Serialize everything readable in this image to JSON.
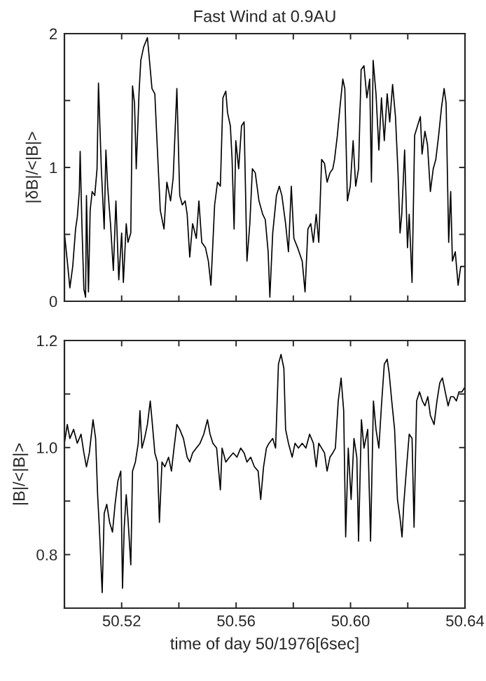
{
  "chart_data": [
    {
      "type": "line",
      "title": "Fast Wind at 0.9AU",
      "ylabel": "|δB|/<|B|>",
      "xlim": [
        50.5,
        50.64
      ],
      "xticks": [
        {
          "value": 50.52,
          "label": null
        },
        {
          "value": 50.54,
          "label": null
        },
        {
          "value": 50.56,
          "label": null
        },
        {
          "value": 50.58,
          "label": null
        },
        {
          "value": 50.6,
          "label": null
        },
        {
          "value": 50.62,
          "label": null
        },
        {
          "value": 50.64,
          "label": null
        }
      ],
      "ylim": [
        0,
        2
      ],
      "yticks": [
        0,
        {
          "value": 0.5,
          "label": null
        },
        1,
        {
          "value": 1.5,
          "label": null
        },
        2
      ],
      "tick_labels": "y",
      "grid": false,
      "legend": false,
      "marker": "none",
      "line_style": "solid",
      "series": [
        {
          "color": "#000000",
          "x": [
            50.5,
            50.501,
            50.5019,
            50.5029,
            50.5039,
            50.5045,
            50.5052,
            50.5055,
            50.5061,
            50.5068,
            50.5074,
            50.5077,
            50.5084,
            50.509,
            50.5097,
            50.5106,
            50.5114,
            50.5119,
            50.5129,
            50.5139,
            50.5145,
            50.5151,
            50.5161,
            50.5171,
            50.518,
            50.519,
            50.52,
            50.5206,
            50.5216,
            50.5222,
            50.5232,
            50.5238,
            50.5245,
            50.5251,
            50.5261,
            50.5267,
            50.5277,
            50.529,
            50.5296,
            50.5306,
            50.5316,
            50.5325,
            50.5335,
            50.5348,
            50.5358,
            50.5371,
            50.538,
            50.5393,
            50.5403,
            50.5412,
            50.5422,
            50.5429,
            50.5438,
            50.5448,
            50.5461,
            50.547,
            50.548,
            50.5493,
            50.5503,
            50.5512,
            50.5525,
            50.5535,
            50.5545,
            50.5554,
            50.5564,
            50.557,
            50.558,
            50.5586,
            50.5593,
            50.5599,
            50.5609,
            50.5619,
            50.5628,
            50.5638,
            50.5648,
            50.5657,
            50.5667,
            50.568,
            50.5693,
            50.5702,
            50.5712,
            50.5718,
            50.5728,
            50.5741,
            50.5751,
            50.576,
            50.5773,
            50.5783,
            50.5793,
            50.5802,
            50.5815,
            50.5831,
            50.5841,
            50.5851,
            50.5861,
            50.587,
            50.588,
            50.5889,
            50.5899,
            50.5909,
            50.5918,
            50.5928,
            50.5938,
            50.5944,
            50.5954,
            50.5963,
            50.5973,
            50.598,
            50.5989,
            50.5999,
            50.6009,
            50.6018,
            50.6028,
            50.6037,
            50.6047,
            50.6057,
            50.6067,
            50.6073,
            50.6079,
            50.6089,
            50.6099,
            50.6108,
            50.6118,
            50.6128,
            50.6137,
            50.6147,
            50.6157,
            50.6166,
            50.6173,
            50.6179,
            50.6189,
            50.6199,
            50.6205,
            50.6215,
            50.6224,
            50.6234,
            50.6244,
            50.625,
            50.626,
            50.6269,
            50.6279,
            50.6289,
            50.6298,
            50.6308,
            50.6318,
            50.6327,
            50.6334,
            50.6343,
            50.635,
            50.6356,
            50.6366,
            50.6376,
            50.6385,
            50.64
          ],
          "values": [
            0.51,
            0.3,
            0.1,
            0.26,
            0.54,
            0.63,
            0.82,
            1.12,
            0.58,
            0.09,
            0.03,
            0.79,
            0.07,
            0.68,
            0.82,
            0.79,
            0.99,
            1.63,
            0.99,
            0.54,
            1.13,
            0.86,
            0.58,
            0.23,
            0.75,
            0.16,
            0.51,
            0.14,
            0.58,
            0.44,
            0.51,
            1.61,
            1.48,
            0.99,
            1.57,
            1.8,
            1.9,
            1.97,
            1.83,
            1.59,
            1.55,
            1.13,
            0.68,
            0.54,
            0.89,
            0.75,
            0.92,
            1.59,
            0.79,
            0.72,
            0.75,
            0.65,
            0.33,
            0.58,
            0.47,
            0.75,
            0.44,
            0.4,
            0.3,
            0.12,
            0.72,
            0.89,
            0.86,
            1.52,
            1.57,
            1.41,
            1.31,
            1.06,
            0.54,
            1.2,
            0.99,
            1.31,
            1.34,
            0.3,
            0.58,
            0.99,
            0.96,
            0.75,
            0.65,
            0.61,
            0.37,
            0.03,
            0.51,
            0.79,
            0.86,
            0.79,
            0.58,
            0.37,
            0.86,
            0.47,
            0.4,
            0.3,
            0.07,
            0.54,
            0.58,
            0.44,
            0.65,
            0.44,
            1.06,
            1.03,
            0.89,
            0.96,
            0.99,
            1.06,
            1.24,
            1.45,
            1.66,
            1.59,
            0.75,
            0.86,
            1.2,
            0.86,
            0.99,
            1.73,
            1.76,
            1.52,
            1.66,
            0.89,
            1.8,
            1.55,
            1.13,
            1.52,
            1.2,
            1.55,
            1.34,
            1.62,
            1.38,
            0.96,
            0.51,
            0.65,
            1.13,
            0.4,
            0.65,
            0.14,
            1.24,
            1.31,
            1.38,
            1.1,
            1.27,
            1.17,
            0.82,
            0.99,
            1.06,
            1.24,
            1.45,
            1.59,
            1.48,
            0.44,
            0.82,
            0.3,
            0.37,
            0.12,
            0.26,
            0.26
          ]
        }
      ]
    },
    {
      "type": "line",
      "xlabel": "time of day 50/1976[6sec]",
      "ylabel": "|B|/<|B|>",
      "xlim": [
        50.5,
        50.64
      ],
      "xticks": [
        {
          "value": 50.52,
          "label": "50.52"
        },
        {
          "value": 50.54,
          "label": null
        },
        {
          "value": 50.56,
          "label": "50.56"
        },
        {
          "value": 50.58,
          "label": null
        },
        {
          "value": 50.6,
          "label": "50.60"
        },
        {
          "value": 50.62,
          "label": null
        },
        {
          "value": 50.64,
          "label": "50.64"
        }
      ],
      "ylim": [
        0.7,
        1.2
      ],
      "yticks": [
        {
          "value": 0.7,
          "label": null
        },
        {
          "value": 0.8,
          "label": "0.8"
        },
        {
          "value": 0.9,
          "label": null
        },
        {
          "value": 1.0,
          "label": "1.0"
        },
        {
          "value": 1.1,
          "label": null
        },
        {
          "value": 1.2,
          "label": "1.2"
        }
      ],
      "grid": false,
      "legend": false,
      "marker": "none",
      "line_style": "solid",
      "series": [
        {
          "color": "#000000",
          "x": [
            50.5,
            50.501,
            50.5019,
            50.5032,
            50.5045,
            50.5058,
            50.5068,
            50.5077,
            50.5087,
            50.51,
            50.5109,
            50.5116,
            50.5122,
            50.5132,
            50.5139,
            50.5148,
            50.5158,
            50.5168,
            50.5177,
            50.5187,
            50.5197,
            50.5203,
            50.5209,
            50.5216,
            50.5222,
            50.5232,
            50.5238,
            50.5248,
            50.5258,
            50.5264,
            50.5271,
            50.528,
            50.529,
            50.53,
            50.5306,
            50.5316,
            50.5325,
            50.5332,
            50.5341,
            50.5351,
            50.5364,
            50.5374,
            50.5383,
            50.5393,
            50.5403,
            50.5416,
            50.5429,
            50.5438,
            50.5448,
            50.5461,
            50.5474,
            50.5487,
            50.55,
            50.5509,
            50.5519,
            50.5532,
            50.5545,
            50.5551,
            50.5564,
            50.5577,
            50.559,
            50.5603,
            50.5616,
            50.5628,
            50.5638,
            50.5651,
            50.5664,
            50.5677,
            50.5686,
            50.5696,
            50.5706,
            50.5715,
            50.5728,
            50.5738,
            50.5748,
            50.5757,
            50.5767,
            50.5773,
            50.5783,
            50.5796,
            50.5806,
            50.5818,
            50.5831,
            50.5844,
            50.5857,
            50.587,
            50.588,
            50.5889,
            50.5899,
            50.5909,
            50.5918,
            50.5928,
            50.5938,
            50.5947,
            50.5957,
            50.5967,
            50.5976,
            50.5983,
            50.5992,
            50.6002,
            50.6012,
            50.6022,
            50.6028,
            50.6038,
            50.6047,
            50.606,
            50.607,
            50.608,
            50.6089,
            50.6099,
            50.6108,
            50.6118,
            50.6128,
            50.6135,
            50.6144,
            50.6154,
            50.6164,
            50.6173,
            50.618,
            50.6186,
            50.6196,
            50.6205,
            50.6215,
            50.6222,
            50.6231,
            50.6241,
            50.6251,
            50.626,
            50.627,
            50.6279,
            50.6292,
            50.6302,
            50.6312,
            50.6321,
            50.6331,
            50.6341,
            50.635,
            50.636,
            50.637,
            50.6379,
            50.6389,
            50.64
          ],
          "values": [
            1.008,
            1.043,
            1.017,
            1.034,
            1.008,
            1.025,
            0.99,
            0.964,
            0.99,
            1.052,
            1.017,
            0.912,
            0.851,
            0.729,
            0.877,
            0.894,
            0.86,
            0.842,
            0.894,
            0.938,
            0.956,
            0.737,
            0.851,
            0.912,
            0.868,
            0.781,
            0.956,
            0.973,
            1.008,
            1.069,
            0.999,
            1.017,
            1.043,
            1.087,
            1.052,
            0.99,
            0.973,
            0.86,
            0.973,
            0.964,
            0.982,
            0.956,
            0.999,
            1.043,
            1.034,
            1.017,
            0.982,
            0.973,
            0.99,
            0.999,
            1.008,
            1.025,
            1.052,
            1.025,
            1.008,
            0.999,
            0.921,
            0.999,
            0.973,
            0.982,
            0.99,
            0.982,
            0.999,
            0.99,
            0.973,
            0.982,
            0.964,
            0.956,
            0.903,
            0.964,
            0.999,
            1.008,
            1.017,
            0.999,
            1.156,
            1.174,
            1.148,
            1.034,
            1.008,
            0.982,
            1.008,
            0.999,
            1.008,
            0.999,
            1.025,
            1.008,
            0.964,
            1.008,
            0.999,
            0.99,
            0.956,
            0.982,
            0.99,
            0.999,
            1.087,
            1.13,
            1.069,
            0.833,
            0.999,
            0.903,
            1.017,
            0.982,
            0.825,
            1.052,
            0.999,
            1.034,
            0.825,
            1.087,
            1.034,
            0.999,
            1.078,
            1.156,
            1.165,
            1.139,
            1.087,
            1.034,
            0.903,
            0.868,
            0.833,
            0.894,
            0.964,
            1.025,
            1.017,
            0.851,
            1.087,
            1.104,
            1.087,
            1.078,
            1.095,
            1.06,
            1.043,
            1.087,
            1.121,
            1.13,
            1.104,
            1.078,
            1.095,
            1.095,
            1.087,
            1.104,
            1.104,
            1.113
          ]
        }
      ]
    }
  ]
}
